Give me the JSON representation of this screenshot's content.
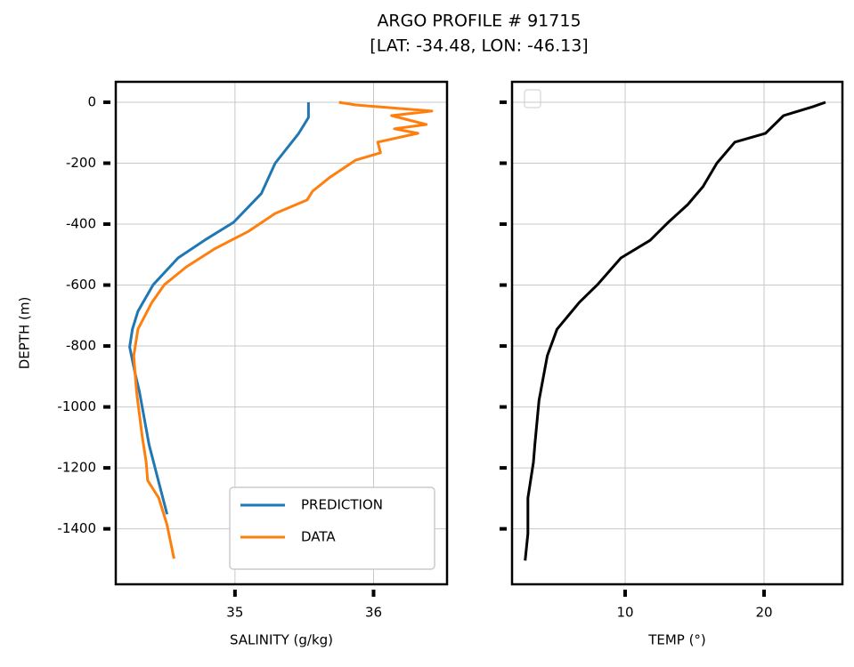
{
  "chart_data": [
    {
      "type": "line",
      "title": "ARGO PROFILE # 91715",
      "subtitle": "[LAT: -34.48, LON: -46.13]",
      "xlabel": "SALINITY (g/kg)",
      "ylabel": "DEPTH (m)",
      "xlim": [
        34.14,
        36.53
      ],
      "ylim": [
        -1582,
        67
      ],
      "xticks": [
        35,
        36
      ],
      "yticks": [
        0,
        -200,
        -400,
        -600,
        -800,
        -1000,
        -1200,
        -1400
      ],
      "grid": true,
      "legend": "lower right",
      "series": [
        {
          "name": "PREDICTION",
          "color": "#1f77b4",
          "x": [
            35.53,
            35.53,
            35.46,
            35.29,
            35.19,
            34.99,
            34.78,
            34.59,
            34.41,
            34.3,
            34.26,
            34.24,
            34.28,
            34.31,
            34.38,
            34.51
          ],
          "values": [
            0,
            -50,
            -102,
            -200,
            -300,
            -394,
            -453,
            -511,
            -599,
            -686,
            -745,
            -803,
            -891,
            -949,
            -1124,
            -1352
          ]
        },
        {
          "name": "DATA",
          "color": "#ff7f0e",
          "x": [
            35.75,
            35.87,
            36.42,
            36.13,
            36.38,
            36.15,
            36.32,
            36.03,
            36.05,
            35.87,
            35.68,
            35.56,
            35.52,
            35.29,
            35.1,
            34.85,
            34.65,
            34.49,
            34.4,
            34.3,
            34.27,
            34.29,
            34.33,
            34.36,
            34.37,
            34.45,
            34.51,
            34.56
          ],
          "values": [
            0,
            -9,
            -29,
            -44,
            -73,
            -87,
            -102,
            -131,
            -166,
            -190,
            -248,
            -292,
            -321,
            -365,
            -423,
            -482,
            -540,
            -599,
            -657,
            -745,
            -832,
            -949,
            -1095,
            -1182,
            -1241,
            -1299,
            -1387,
            -1498
          ]
        }
      ]
    },
    {
      "type": "line",
      "xlabel": "TEMP (°)",
      "sharey": true,
      "xlim": [
        1.86,
        25.64
      ],
      "ylim": [
        -1582,
        67
      ],
      "xticks": [
        10,
        20
      ],
      "grid": true,
      "series": [
        {
          "color": "#000000",
          "x": [
            24.42,
            23.5,
            21.4,
            20.1,
            17.9,
            16.6,
            15.6,
            14.5,
            13.1,
            11.8,
            9.7,
            8.0,
            6.7,
            5.1,
            4.4,
            3.8,
            3.5,
            3.4,
            3.0,
            3.0,
            2.8
          ],
          "values": [
            0,
            -15,
            -44,
            -102,
            -131,
            -200,
            -277,
            -336,
            -394,
            -453,
            -511,
            -599,
            -657,
            -745,
            -832,
            -978,
            -1124,
            -1182,
            -1299,
            -1416,
            -1504
          ]
        }
      ]
    }
  ]
}
